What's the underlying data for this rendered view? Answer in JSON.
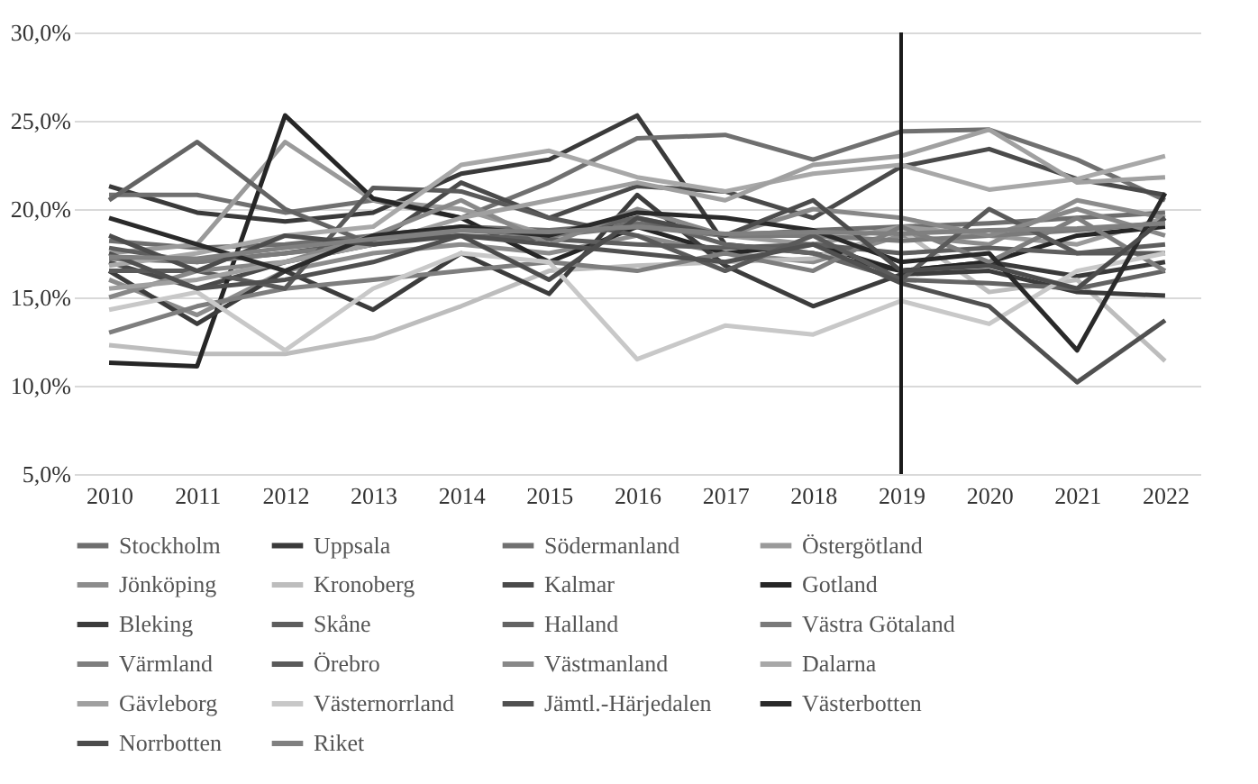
{
  "chart_data": {
    "type": "line",
    "categories": [
      "2010",
      "2011",
      "2012",
      "2013",
      "2014",
      "2015",
      "2016",
      "2017",
      "2018",
      "2019",
      "2020",
      "2021",
      "2022"
    ],
    "ylim": [
      5,
      30
    ],
    "yticks": [
      {
        "value": 5,
        "label": "5,0%"
      },
      {
        "value": 10,
        "label": "10,0%"
      },
      {
        "value": 15,
        "label": "15,0%"
      },
      {
        "value": 20,
        "label": "20,0%"
      },
      {
        "value": 25,
        "label": "25,0%"
      },
      {
        "value": 30,
        "label": "30,0%"
      }
    ],
    "grid": "y",
    "legend": "bottom",
    "marker": "none",
    "line_style": "solid",
    "ref_lines": [
      {
        "axis": "x",
        "value": "2019",
        "color": "#1a1a1a"
      }
    ],
    "series": [
      {
        "name": "Stockholm",
        "color": "#6e6e6e",
        "values": [
          18.2,
          17.8,
          18.0,
          18.5,
          19.0,
          18.8,
          19.2,
          18.5,
          18.8,
          19.0,
          19.2,
          19.5,
          19.8
        ]
      },
      {
        "name": "Uppsala",
        "color": "#3a3a3a",
        "values": [
          21.3,
          19.8,
          19.3,
          19.8,
          22.0,
          22.8,
          25.3,
          18.0,
          17.5,
          16.5,
          17.0,
          16.2,
          17.0
        ]
      },
      {
        "name": "Södermanland",
        "color": "#707070",
        "values": [
          20.8,
          20.8,
          19.8,
          20.5,
          19.5,
          21.5,
          24.0,
          24.2,
          22.8,
          24.4,
          24.5,
          22.8,
          20.5
        ]
      },
      {
        "name": "Östergötland",
        "color": "#9a9a9a",
        "values": [
          17.5,
          18.0,
          23.8,
          20.5,
          20.0,
          18.5,
          19.5,
          18.5,
          18.0,
          19.0,
          18.5,
          18.0,
          19.5
        ]
      },
      {
        "name": "Jönköping",
        "color": "#8c8c8c",
        "values": [
          16.0,
          14.0,
          16.5,
          17.5,
          18.0,
          17.5,
          18.5,
          17.5,
          17.0,
          18.5,
          18.0,
          20.5,
          19.5
        ]
      },
      {
        "name": "Kronoberg",
        "color": "#bdbdbd",
        "values": [
          12.3,
          11.8,
          11.8,
          12.7,
          14.5,
          16.5,
          16.8,
          17.0,
          17.2,
          18.8,
          15.3,
          16.0,
          11.4
        ]
      },
      {
        "name": "Kalmar",
        "color": "#4a4a4a",
        "values": [
          17.0,
          15.5,
          17.0,
          18.0,
          21.5,
          19.5,
          21.3,
          21.0,
          19.5,
          22.4,
          23.4,
          21.7,
          20.8
        ]
      },
      {
        "name": "Gotland",
        "color": "#262626",
        "values": [
          11.3,
          11.1,
          25.3,
          20.6,
          19.5,
          17.0,
          19.0,
          17.5,
          18.0,
          16.5,
          17.0,
          18.5,
          19.0
        ]
      },
      {
        "name": "Bleking",
        "color": "#3c3c3c",
        "values": [
          16.5,
          13.5,
          16.5,
          14.3,
          17.5,
          15.2,
          20.8,
          16.8,
          14.5,
          16.3,
          16.5,
          15.3,
          15.1
        ]
      },
      {
        "name": "Skåne",
        "color": "#5e5e5e",
        "values": [
          17.8,
          17.0,
          17.5,
          18.2,
          18.5,
          18.3,
          18.0,
          17.8,
          18.0,
          17.5,
          17.8,
          17.5,
          18.0
        ]
      },
      {
        "name": "Halland",
        "color": "#646464",
        "values": [
          20.5,
          23.8,
          20.0,
          18.0,
          19.0,
          18.5,
          19.5,
          18.0,
          17.5,
          16.0,
          15.8,
          15.5,
          16.5
        ]
      },
      {
        "name": "Västra Götaland",
        "color": "#7a7a7a",
        "values": [
          17.2,
          17.0,
          17.5,
          18.0,
          18.8,
          18.5,
          19.0,
          18.5,
          18.5,
          18.2,
          18.5,
          18.8,
          19.2
        ]
      },
      {
        "name": "Värmland",
        "color": "#7e7e7e",
        "values": [
          13.0,
          14.5,
          15.5,
          16.0,
          16.5,
          17.0,
          16.5,
          17.5,
          16.5,
          19.0,
          17.0,
          19.5,
          16.5
        ]
      },
      {
        "name": "Örebro",
        "color": "#5a5a5a",
        "values": [
          16.5,
          16.5,
          15.5,
          21.2,
          21.0,
          19.5,
          18.5,
          16.5,
          18.5,
          16.0,
          20.0,
          17.5,
          17.5
        ]
      },
      {
        "name": "Västmanland",
        "color": "#888888",
        "values": [
          15.0,
          16.5,
          17.0,
          18.5,
          20.5,
          18.0,
          20.0,
          18.5,
          20.0,
          19.5,
          18.5,
          20.0,
          18.5
        ]
      },
      {
        "name": "Dalarna",
        "color": "#a8a8a8",
        "values": [
          16.8,
          17.5,
          18.5,
          19.0,
          22.5,
          23.3,
          21.8,
          21.0,
          22.0,
          22.5,
          21.1,
          21.7,
          23.0
        ]
      },
      {
        "name": "Gävleborg",
        "color": "#a0a0a0",
        "values": [
          15.5,
          16.0,
          17.0,
          18.0,
          19.5,
          20.5,
          21.5,
          20.5,
          22.5,
          23.0,
          24.5,
          21.5,
          21.8
        ]
      },
      {
        "name": "Västernorrland",
        "color": "#c8c8c8",
        "values": [
          14.3,
          15.3,
          12.0,
          15.5,
          17.5,
          17.0,
          11.5,
          13.4,
          12.9,
          14.8,
          13.5,
          16.5,
          17.5
        ]
      },
      {
        "name": "Jämtl.-Härjedalen",
        "color": "#505050",
        "values": [
          17.5,
          15.5,
          16.0,
          17.0,
          18.5,
          18.0,
          17.5,
          17.0,
          18.0,
          15.8,
          14.5,
          10.2,
          13.7
        ]
      },
      {
        "name": "Västerbotten",
        "color": "#2a2a2a",
        "values": [
          19.5,
          18.0,
          16.5,
          18.5,
          19.0,
          18.5,
          19.8,
          19.5,
          18.8,
          17.0,
          17.5,
          12.0,
          20.9
        ]
      },
      {
        "name": "Norrbotten",
        "color": "#4c4c4c",
        "values": [
          18.5,
          16.5,
          18.5,
          18.0,
          18.5,
          16.0,
          19.5,
          18.5,
          20.5,
          16.5,
          16.8,
          15.5,
          19.5
        ]
      },
      {
        "name": "Riket",
        "color": "#808080",
        "values": [
          17.3,
          17.2,
          17.8,
          18.3,
          18.8,
          18.7,
          19.0,
          18.6,
          18.7,
          18.6,
          18.8,
          18.9,
          19.2
        ]
      }
    ]
  }
}
